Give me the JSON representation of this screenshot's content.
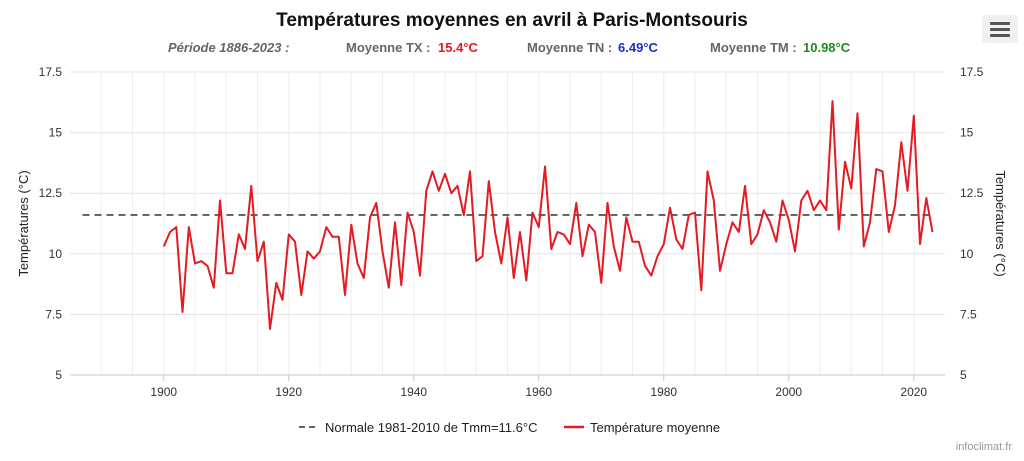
{
  "chart_data": {
    "type": "line",
    "title": "Températures moyennes en avril à Paris-Montsouris",
    "subtitle": {
      "period": "Période 1886-2023 :",
      "tx_label": "Moyenne TX :",
      "tx_value": "15.4°C",
      "tn_label": "Moyenne TN :",
      "tn_value": "6.49°C",
      "tm_label": "Moyenne TM :",
      "tm_value": "10.98°C"
    },
    "ylabel": "Températures (°C)",
    "ylabel_right": "Températures (°C)",
    "xlim": [
      1885,
      2025
    ],
    "ylim": [
      5,
      17.5
    ],
    "x_ticks": [
      1900,
      1920,
      1940,
      1960,
      1980,
      2000,
      2020
    ],
    "y_ticks": [
      5,
      7.5,
      10,
      12.5,
      15,
      17.5
    ],
    "y_tick_labels": [
      "5",
      "7.5",
      "10",
      "12.5",
      "15",
      "17.5"
    ],
    "grid": true,
    "legend_position": "bottom",
    "reference": {
      "name": "Normale 1981-2010 de Tmm=11.6°C",
      "value": 11.6,
      "color": "#333333"
    },
    "series": [
      {
        "name": "Température moyenne",
        "color": "#e31b23",
        "x": [
          1900,
          1901,
          1902,
          1903,
          1904,
          1905,
          1906,
          1907,
          1908,
          1909,
          1910,
          1911,
          1912,
          1913,
          1914,
          1915,
          1916,
          1917,
          1918,
          1919,
          1920,
          1921,
          1922,
          1923,
          1924,
          1925,
          1926,
          1927,
          1928,
          1929,
          1930,
          1931,
          1932,
          1933,
          1934,
          1935,
          1936,
          1937,
          1938,
          1939,
          1940,
          1941,
          1942,
          1943,
          1944,
          1945,
          1946,
          1947,
          1948,
          1949,
          1950,
          1951,
          1952,
          1953,
          1954,
          1955,
          1956,
          1957,
          1958,
          1959,
          1960,
          1961,
          1962,
          1963,
          1964,
          1965,
          1966,
          1967,
          1968,
          1969,
          1970,
          1971,
          1972,
          1973,
          1974,
          1975,
          1976,
          1977,
          1978,
          1979,
          1980,
          1981,
          1982,
          1983,
          1984,
          1985,
          1986,
          1987,
          1988,
          1989,
          1990,
          1991,
          1992,
          1993,
          1994,
          1995,
          1996,
          1997,
          1998,
          1999,
          2000,
          2001,
          2002,
          2003,
          2004,
          2005,
          2006,
          2007,
          2008,
          2009,
          2010,
          2011,
          2012,
          2013,
          2014,
          2015,
          2016,
          2017,
          2018,
          2019,
          2020,
          2021,
          2022,
          2023
        ],
        "y": [
          10.3,
          10.9,
          11.1,
          7.6,
          11.1,
          9.6,
          9.7,
          9.5,
          8.6,
          12.2,
          9.2,
          9.2,
          10.8,
          10.2,
          12.8,
          9.7,
          10.5,
          6.9,
          8.8,
          8.1,
          10.8,
          10.5,
          8.3,
          10.1,
          9.8,
          10.1,
          11.1,
          10.7,
          10.7,
          8.3,
          11.2,
          9.6,
          9.0,
          11.5,
          12.1,
          10.1,
          8.6,
          11.3,
          8.7,
          11.7,
          10.9,
          9.1,
          12.6,
          13.4,
          12.6,
          13.3,
          12.5,
          12.8,
          11.6,
          13.4,
          9.7,
          9.9,
          13.0,
          10.9,
          9.6,
          11.5,
          9.0,
          10.9,
          8.9,
          11.7,
          11.1,
          13.6,
          10.2,
          10.9,
          10.8,
          10.4,
          12.1,
          9.9,
          11.2,
          10.9,
          8.8,
          12.1,
          10.3,
          9.3,
          11.5,
          10.5,
          10.5,
          9.5,
          9.1,
          9.9,
          10.4,
          11.9,
          10.6,
          10.2,
          11.6,
          11.7,
          8.5,
          13.4,
          12.2,
          9.3,
          10.4,
          11.3,
          10.9,
          12.8,
          10.4,
          10.8,
          11.8,
          11.3,
          10.5,
          12.2,
          11.4,
          10.1,
          12.2,
          12.6,
          11.8,
          12.2,
          11.8,
          16.3,
          11.0,
          13.8,
          12.7,
          15.8,
          10.3,
          11.3,
          13.5,
          13.4,
          10.9,
          12.0,
          14.6,
          12.6,
          15.7,
          10.4,
          12.3,
          10.9
        ]
      }
    ]
  },
  "credit": "infoclimat.fr",
  "ui": {
    "menu_icon": "hamburger-menu-icon"
  }
}
